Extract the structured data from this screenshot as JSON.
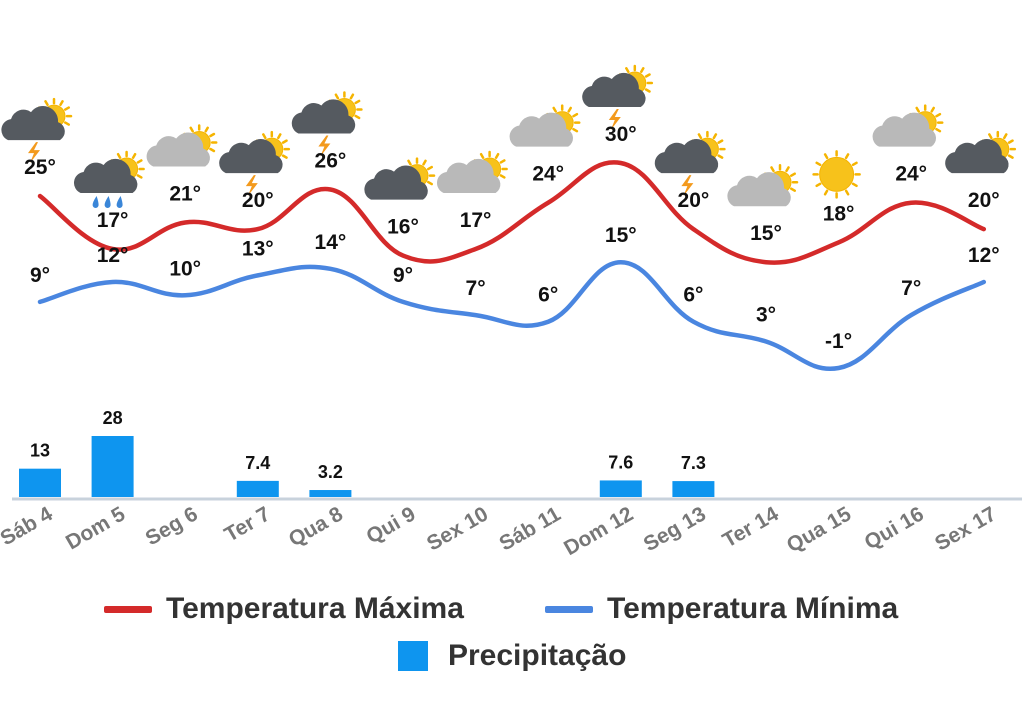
{
  "chart_data": {
    "type": "line",
    "categories": [
      "Sáb 4",
      "Dom 5",
      "Seg 6",
      "Ter 7",
      "Qua 8",
      "Qui 9",
      "Sex 10",
      "Sáb 11",
      "Dom 12",
      "Seg 13",
      "Ter 14",
      "Qua 15",
      "Qui 16",
      "Sex 17"
    ],
    "series": [
      {
        "name": "Temperatura Máxima",
        "type": "line",
        "color": "#d42a2a",
        "values": [
          25,
          17,
          21,
          20,
          26,
          16,
          17,
          24,
          30,
          20,
          15,
          18,
          24,
          20
        ]
      },
      {
        "name": "Temperatura Mínima",
        "type": "line",
        "color": "#4a86e0",
        "values": [
          9,
          12,
          10,
          13,
          14,
          9,
          7,
          6,
          15,
          6,
          3,
          -1,
          7,
          12
        ]
      },
      {
        "name": "Precipitação",
        "type": "bar",
        "color": "#0e95ef",
        "values": [
          13,
          28,
          null,
          7.4,
          3.2,
          null,
          null,
          null,
          7.6,
          7.3,
          null,
          null,
          null,
          null
        ]
      }
    ],
    "max_labels": [
      "25°",
      "17°",
      "21°",
      "20°",
      "26°",
      "16°",
      "17°",
      "24°",
      "30°",
      "20°",
      "15°",
      "18°",
      "24°",
      "20°"
    ],
    "min_labels": [
      "9°",
      "12°",
      "10°",
      "13°",
      "14°",
      "9°",
      "7°",
      "6°",
      "15°",
      "6°",
      "3°",
      "-1°",
      "7°",
      "12°"
    ],
    "precip_labels": [
      "13",
      "28",
      "",
      "7.4",
      "3.2",
      "",
      "",
      "",
      "7.6",
      "7.3",
      "",
      "",
      "",
      ""
    ],
    "icons": [
      "storm-cloud-sun",
      "rain-cloud-sun",
      "cloud-sun-light",
      "storm-cloud-sun",
      "storm-cloud-sun",
      "cloud-sun-dark",
      "cloud-sun-light",
      "cloud-sun-light",
      "storm-cloud-sun",
      "storm-cloud-sun",
      "cloud-sun-light",
      "sun",
      "cloud-sun-light",
      "cloud-sun-dark"
    ],
    "legend_position": "bottom",
    "grid": false
  },
  "legend": {
    "max_label": "Temperatura Máxima",
    "min_label": "Temperatura Mínima",
    "precip_label": "Precipitação"
  }
}
